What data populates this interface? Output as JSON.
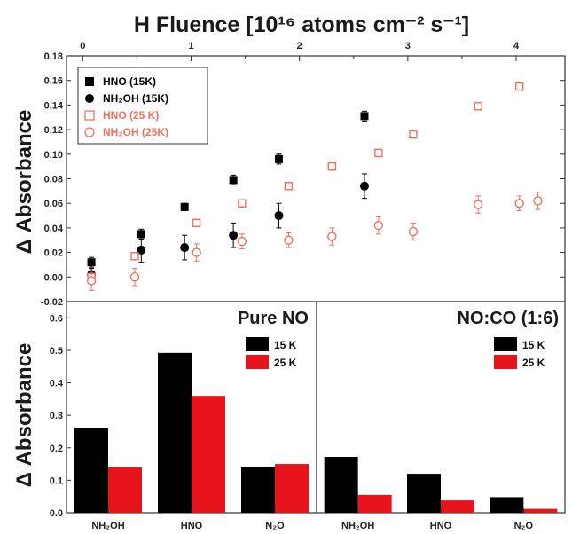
{
  "chart_data": [
    {
      "type": "scatter",
      "top_axis_label": "H Fluence [10¹⁶ atoms cm⁻² s⁻¹]",
      "top_ticks": [
        "0",
        "1",
        "2",
        "3",
        "4"
      ],
      "ylabel": "Δ Absorbance",
      "ylim": [
        -0.02,
        0.18
      ],
      "xlim": [
        -0.15,
        4.45
      ],
      "yticks": [
        "-0.02",
        "0.00",
        "0.02",
        "0.04",
        "0.06",
        "0.08",
        "0.10",
        "0.12",
        "0.14",
        "0.16",
        "0.18"
      ],
      "legend_position": "top-left",
      "series": [
        {
          "name": "HNO (15K)",
          "marker": "square-filled",
          "color": "#000000",
          "x": [
            0.08,
            0.54,
            0.94,
            1.39,
            1.81,
            2.6
          ],
          "y": [
            0.012,
            0.035,
            0.057,
            0.079,
            0.096,
            0.131
          ],
          "err": [
            0.004,
            0.004,
            0.003,
            0.004,
            0.004,
            0.004
          ]
        },
        {
          "name": "NH₂OH (15K)",
          "marker": "circle-filled",
          "color": "#000000",
          "x": [
            0.08,
            0.54,
            0.94,
            1.39,
            1.81,
            2.6
          ],
          "y": [
            0.002,
            0.022,
            0.024,
            0.034,
            0.05,
            0.074
          ],
          "err": [
            0.005,
            0.01,
            0.01,
            0.01,
            0.01,
            0.01
          ]
        },
        {
          "name": "HNO (25 K)",
          "marker": "square-open",
          "color": "#f07060",
          "x": [
            0.08,
            0.48,
            1.05,
            1.47,
            1.9,
            2.3,
            2.73,
            3.05,
            3.65,
            4.03
          ],
          "y": [
            0.0,
            0.017,
            0.044,
            0.06,
            0.074,
            0.09,
            0.101,
            0.116,
            0.139,
            0.155
          ],
          "err": [
            0.003,
            0.003,
            0.003,
            0.003,
            0.003,
            0.003,
            0.003,
            0.003,
            0.003,
            0.003
          ]
        },
        {
          "name": "NH₂OH (25K)",
          "marker": "circle-open",
          "color": "#f07060",
          "x": [
            0.08,
            0.48,
            1.05,
            1.47,
            1.9,
            2.3,
            2.73,
            3.05,
            3.65,
            4.03,
            4.2
          ],
          "y": [
            -0.003,
            0.0,
            0.02,
            0.029,
            0.03,
            0.033,
            0.042,
            0.037,
            0.059,
            0.06,
            0.062
          ],
          "err": [
            0.008,
            0.007,
            0.007,
            0.006,
            0.006,
            0.007,
            0.007,
            0.007,
            0.007,
            0.006,
            0.007
          ]
        }
      ]
    },
    {
      "type": "bar",
      "title": "Pure NO",
      "ylabel": "Δ Absorbance",
      "ylim": [
        0,
        0.65
      ],
      "yticks": [
        "0.0",
        "0.1",
        "0.2",
        "0.3",
        "0.4",
        "0.5",
        "0.6"
      ],
      "categories": [
        "NH₂OH",
        "HNO",
        "N₂O"
      ],
      "legend_position": "top-right",
      "series": [
        {
          "name": "15 K",
          "color": "#000000",
          "values": [
            0.262,
            0.492,
            0.14
          ]
        },
        {
          "name": "25 K",
          "color": "#e8141c",
          "values": [
            0.14,
            0.36,
            0.15
          ]
        }
      ]
    },
    {
      "type": "bar",
      "title": "NO:CO (1:6)",
      "ylim": [
        0,
        0.65
      ],
      "categories": [
        "NH₂OH",
        "HNO",
        "N₂O"
      ],
      "legend_position": "top-right",
      "series": [
        {
          "name": "15 K",
          "color": "#000000",
          "values": [
            0.172,
            0.12,
            0.048
          ]
        },
        {
          "name": "25 K",
          "color": "#e8141c",
          "values": [
            0.055,
            0.038,
            0.012
          ]
        }
      ]
    }
  ]
}
